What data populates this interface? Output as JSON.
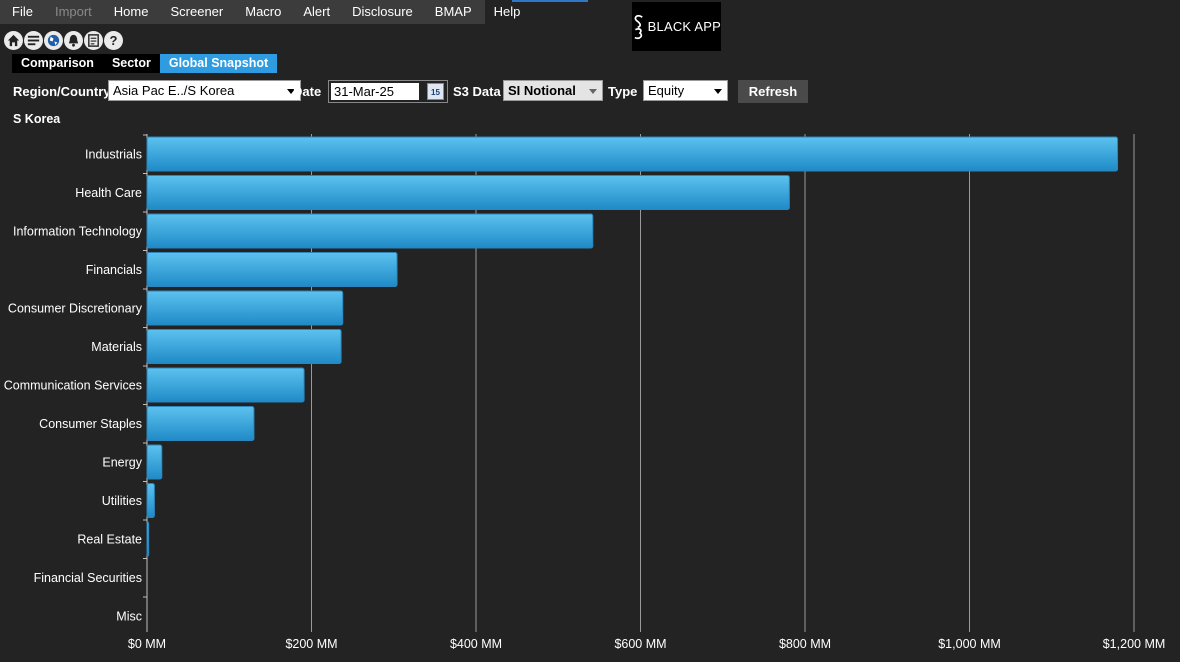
{
  "menu": [
    "File",
    "Import",
    "Home",
    "Screener",
    "Macro",
    "Alert",
    "Disclosure",
    "BMAP",
    "Help"
  ],
  "menu_disabled": [
    "Import"
  ],
  "logo_text": "BLACK APP",
  "toolbar_icons": [
    "home-icon",
    "list-icon",
    "globe-icon",
    "bell-icon",
    "report-icon",
    "help-icon"
  ],
  "tabs": [
    {
      "label": "Comparison",
      "active": false
    },
    {
      "label": "Sector",
      "active": false
    },
    {
      "label": "Global Snapshot",
      "active": true
    }
  ],
  "filters": {
    "region_label": "Region/Country",
    "region_value": "Asia Pac E../S Korea",
    "date_label": "Date",
    "date_value": "31-Mar-25",
    "calendar_day": "15",
    "s3data_label": "S3 Data",
    "s3data_value": "SI Notional",
    "type_label": "Type",
    "type_value": "Equity",
    "refresh_label": "Refresh"
  },
  "region_title": "S Korea",
  "colors": {
    "bar_top": "#5cc2ef",
    "bar_bottom": "#1f8ac7",
    "bar_border": "#2a86bd",
    "grid": "#9a9a9a",
    "background": "#232323",
    "accent": "#2f9be0"
  },
  "chart_data": {
    "type": "bar",
    "orientation": "horizontal",
    "categories": [
      "Industrials",
      "Health Care",
      "Information Technology",
      "Financials",
      "Consumer Discretionary",
      "Materials",
      "Communication Services",
      "Consumer Staples",
      "Energy",
      "Utilities",
      "Real Estate",
      "Financial Securities",
      "Misc"
    ],
    "values": [
      1180,
      781,
      542,
      304,
      238,
      236,
      191,
      130,
      18,
      9,
      2,
      0,
      0
    ],
    "xlim": [
      0,
      1200
    ],
    "xticks": [
      0,
      200,
      400,
      600,
      800,
      1000,
      1200
    ],
    "xtick_labels": [
      "$0 MM",
      "$200 MM",
      "$400 MM",
      "$600 MM",
      "$800 MM",
      "$1,000 MM",
      "$1,200 MM"
    ],
    "grid": true
  }
}
